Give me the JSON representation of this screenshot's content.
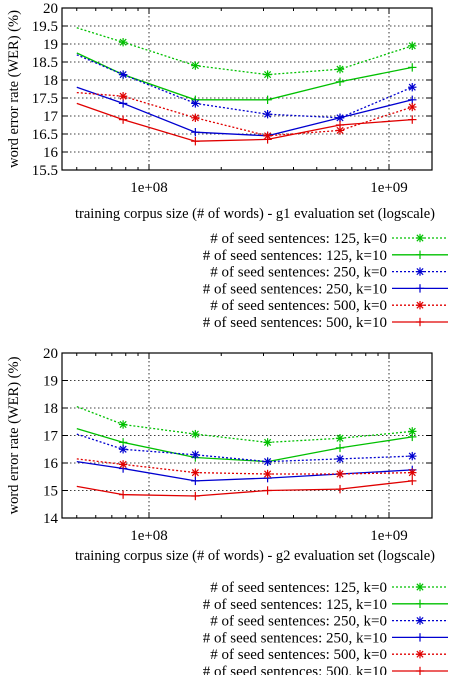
{
  "chart_data": [
    {
      "type": "line",
      "xscale": "log",
      "xlabel": "training corpus size (# of words) - g1 evaluation set (logscale)",
      "ylabel": "word error rate (WER) (%)",
      "ylim": [
        15.5,
        20
      ],
      "yticks": [
        15.5,
        16,
        16.5,
        17,
        17.5,
        18,
        18.5,
        19,
        19.5,
        20
      ],
      "ytick_labels": [
        "15.5",
        "16",
        "16.5",
        "17",
        "17.5",
        "18",
        "18.5",
        "19",
        "19.5",
        "20"
      ],
      "xticks": [
        100000000,
        1000000000
      ],
      "xtick_labels": [
        "1e+08",
        "1e+09"
      ],
      "grid": true,
      "legend_position": "below",
      "series": [
        {
          "name": "# of seed sentences: 125, k=0",
          "color": "#00c000",
          "dash": "dotted",
          "marker": "star",
          "x": [
            50000000,
            78000000,
            156000000,
            312000000,
            625000000,
            1250000000
          ],
          "y": [
            19.45,
            19.05,
            18.4,
            18.15,
            18.3,
            18.95
          ]
        },
        {
          "name": "# of seed sentences: 125, k=10",
          "color": "#00c000",
          "dash": "solid",
          "marker": "plus",
          "x": [
            50000000,
            78000000,
            156000000,
            312000000,
            625000000,
            1250000000
          ],
          "y": [
            18.75,
            18.15,
            17.45,
            17.45,
            17.95,
            18.35
          ]
        },
        {
          "name": "# of seed sentences: 250, k=0",
          "color": "#0000d0",
          "dash": "dotted",
          "marker": "star",
          "x": [
            50000000,
            78000000,
            156000000,
            312000000,
            625000000,
            1250000000
          ],
          "y": [
            18.7,
            18.15,
            17.35,
            17.05,
            16.95,
            17.8
          ]
        },
        {
          "name": "# of seed sentences: 250, k=10",
          "color": "#0000d0",
          "dash": "solid",
          "marker": "plus",
          "x": [
            50000000,
            78000000,
            156000000,
            312000000,
            625000000,
            1250000000
          ],
          "y": [
            17.8,
            17.35,
            16.55,
            16.45,
            16.95,
            17.45
          ]
        },
        {
          "name": "# of seed sentences: 500, k=0",
          "color": "#e00000",
          "dash": "dotted",
          "marker": "star",
          "x": [
            50000000,
            78000000,
            156000000,
            312000000,
            625000000,
            1250000000
          ],
          "y": [
            17.65,
            17.55,
            16.95,
            16.45,
            16.6,
            17.25
          ]
        },
        {
          "name": "# of seed sentences: 500, k=10",
          "color": "#e00000",
          "dash": "solid",
          "marker": "plus",
          "x": [
            50000000,
            78000000,
            156000000,
            312000000,
            625000000,
            1250000000
          ],
          "y": [
            17.35,
            16.9,
            16.3,
            16.35,
            16.75,
            16.9
          ]
        }
      ]
    },
    {
      "type": "line",
      "xscale": "log",
      "xlabel": "training corpus size (# of words) - g2 evaluation set (logscale)",
      "ylabel": "word error rate (WER) (%)",
      "ylim": [
        14,
        20
      ],
      "yticks": [
        14,
        15,
        16,
        17,
        18,
        19,
        20
      ],
      "ytick_labels": [
        "14",
        "15",
        "16",
        "17",
        "18",
        "19",
        "20"
      ],
      "xticks": [
        100000000,
        1000000000
      ],
      "xtick_labels": [
        "1e+08",
        "1e+09"
      ],
      "grid": true,
      "legend_position": "below",
      "series": [
        {
          "name": "# of seed sentences: 125, k=0",
          "color": "#00c000",
          "dash": "dotted",
          "marker": "star",
          "x": [
            50000000,
            78000000,
            156000000,
            312000000,
            625000000,
            1250000000
          ],
          "y": [
            18.05,
            17.4,
            17.05,
            16.75,
            16.9,
            17.15
          ]
        },
        {
          "name": "# of seed sentences: 125, k=10",
          "color": "#00c000",
          "dash": "solid",
          "marker": "plus",
          "x": [
            50000000,
            78000000,
            156000000,
            312000000,
            625000000,
            1250000000
          ],
          "y": [
            17.25,
            16.75,
            16.2,
            16.05,
            16.55,
            16.95
          ]
        },
        {
          "name": "# of seed sentences: 250, k=0",
          "color": "#0000d0",
          "dash": "dotted",
          "marker": "star",
          "x": [
            50000000,
            78000000,
            156000000,
            312000000,
            625000000,
            1250000000
          ],
          "y": [
            17.05,
            16.5,
            16.3,
            16.05,
            16.15,
            16.25
          ]
        },
        {
          "name": "# of seed sentences: 250, k=10",
          "color": "#0000d0",
          "dash": "solid",
          "marker": "plus",
          "x": [
            50000000,
            78000000,
            156000000,
            312000000,
            625000000,
            1250000000
          ],
          "y": [
            16.05,
            15.8,
            15.35,
            15.45,
            15.6,
            15.75
          ]
        },
        {
          "name": "# of seed sentences: 500, k=0",
          "color": "#e00000",
          "dash": "dotted",
          "marker": "star",
          "x": [
            50000000,
            78000000,
            156000000,
            312000000,
            625000000,
            1250000000
          ],
          "y": [
            16.15,
            15.95,
            15.65,
            15.6,
            15.6,
            15.65
          ]
        },
        {
          "name": "# of seed sentences: 500, k=10",
          "color": "#e00000",
          "dash": "solid",
          "marker": "plus",
          "x": [
            50000000,
            78000000,
            156000000,
            312000000,
            625000000,
            1250000000
          ],
          "y": [
            15.15,
            14.85,
            14.8,
            15.0,
            15.05,
            15.35
          ]
        }
      ]
    }
  ]
}
